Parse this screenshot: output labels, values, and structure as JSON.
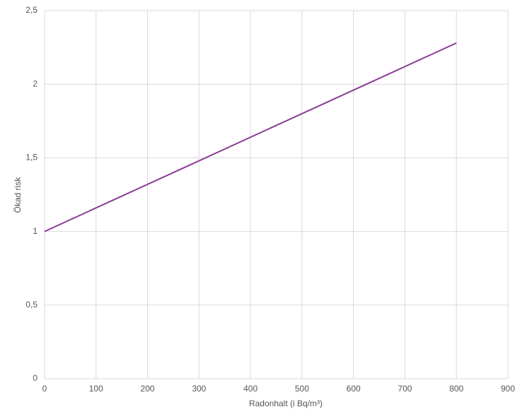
{
  "chart_data": {
    "type": "line",
    "x_label": "Radonhalt  (i Bq/m³)",
    "y_label": "Ökad risk",
    "x": [
      0,
      800
    ],
    "series": [
      {
        "color": "#8b3b96",
        "values": [
          1,
          2.28
        ]
      }
    ],
    "xlim": [
      0,
      900
    ],
    "xticks": [
      0,
      100,
      200,
      300,
      400,
      500,
      600,
      700,
      800,
      900
    ],
    "ylim": [
      0,
      2.5
    ],
    "yticks": [
      0,
      {
        "value": 0.5,
        "label": "0,5"
      },
      1,
      {
        "value": 1.5,
        "label": "1,5"
      },
      2,
      {
        "value": 2.5,
        "label": "2,5"
      }
    ],
    "grid": true
  }
}
